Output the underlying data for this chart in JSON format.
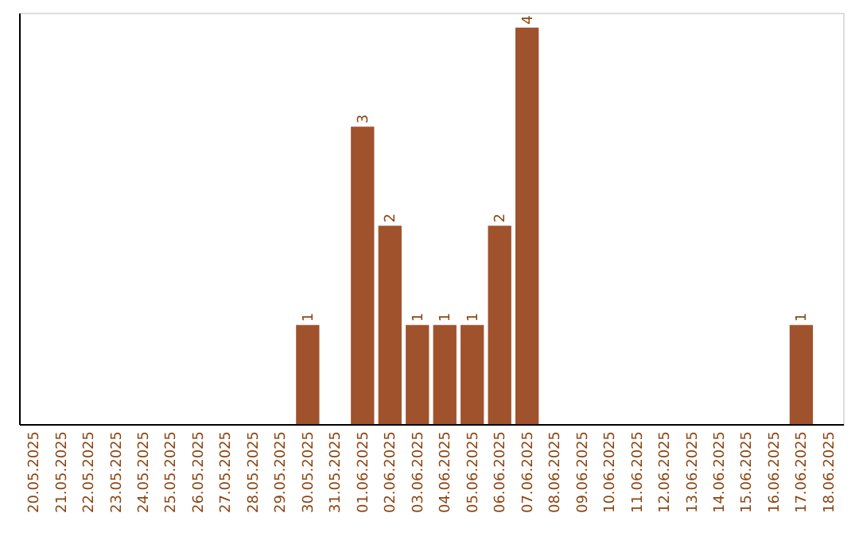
{
  "chart_data": {
    "type": "bar",
    "categories": [
      "20.05.2025",
      "21.05.2025",
      "22.05.2025",
      "23.05.2025",
      "24.05.2025",
      "25.05.2025",
      "26.05.2025",
      "27.05.2025",
      "28.05.2025",
      "29.05.2025",
      "30.05.2025",
      "31.05.2025",
      "01.06.2025",
      "02.06.2025",
      "03.06.2025",
      "04.06.2025",
      "05.06.2025",
      "06.06.2025",
      "07.06.2025",
      "08.06.2025",
      "09.06.2025",
      "10.06.2025",
      "11.06.2025",
      "12.06.2025",
      "13.06.2025",
      "14.06.2025",
      "15.06.2025",
      "16.06.2025",
      "17.06.2025",
      "18.06.2025"
    ],
    "values": [
      null,
      null,
      null,
      null,
      null,
      null,
      null,
      null,
      null,
      null,
      1,
      null,
      3,
      2,
      1,
      1,
      1,
      2,
      4,
      null,
      null,
      null,
      null,
      null,
      null,
      null,
      null,
      null,
      1,
      null
    ],
    "color": "#a0522d",
    "ylim": [
      0,
      4.15
    ],
    "data_labels": true,
    "tick_labels": "x",
    "grid": false
  }
}
